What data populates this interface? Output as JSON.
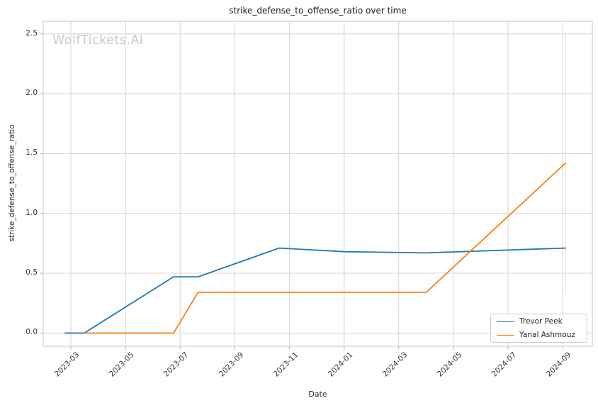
{
  "figure": {
    "watermark": "WolfTickets.AI"
  },
  "chart_data": {
    "type": "line",
    "title": "strike_defense_to_offense_ratio over time",
    "xlabel": "Date",
    "ylabel": "strike_defense_to_offense_ratio",
    "x_tick_labels": [
      "2023-03",
      "2023-05",
      "2023-07",
      "2023-09",
      "2023-11",
      "2024-01",
      "2024-03",
      "2024-05",
      "2024-07",
      "2024-09"
    ],
    "y_tick_labels": [
      "0.0",
      "0.5",
      "1.0",
      "1.5",
      "2.0",
      "2.5"
    ],
    "y_tick_values": [
      0.0,
      0.5,
      1.0,
      1.5,
      2.0,
      2.5
    ],
    "ylim": [
      -0.11,
      2.61
    ],
    "grid": true,
    "legend_position": "lower right",
    "series": [
      {
        "name": "Trevor Peek",
        "color": "#1f77b4",
        "points": [
          [
            "2023-02-25",
            0.0
          ],
          [
            "2023-03-16",
            0.0
          ],
          [
            "2023-06-24",
            0.47
          ],
          [
            "2023-07-21",
            0.47
          ],
          [
            "2023-10-20",
            0.71
          ],
          [
            "2024-01-01",
            0.68
          ],
          [
            "2024-04-01",
            0.67
          ],
          [
            "2024-09-04",
            0.71
          ]
        ]
      },
      {
        "name": "Yanal Ashmouz",
        "color": "#ff7f0e",
        "points": [
          [
            "2023-03-16",
            0.0
          ],
          [
            "2023-06-24",
            0.0
          ],
          [
            "2023-07-21",
            0.34
          ],
          [
            "2024-04-01",
            0.34
          ],
          [
            "2024-09-04",
            1.42
          ]
        ]
      }
    ],
    "annotation_vline": {
      "date": "2024-09-04",
      "y_from": 0.34,
      "y_to": 2.5,
      "color": "#ff7f0e",
      "opacity": 0.25
    }
  }
}
